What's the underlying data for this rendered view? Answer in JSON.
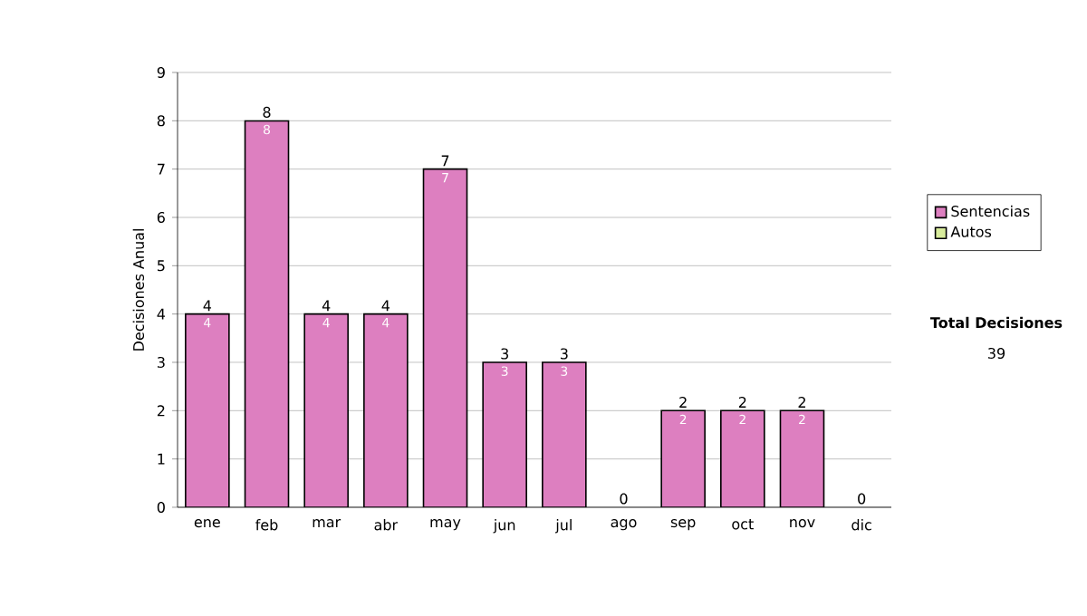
{
  "chart_data": {
    "type": "bar",
    "stacked": true,
    "ylabel": "Decisiones Anual",
    "categories": [
      "ene",
      "feb",
      "mar",
      "abr",
      "may",
      "jun",
      "jul",
      "ago",
      "sep",
      "oct",
      "nov",
      "dic"
    ],
    "series": [
      {
        "name": "Sentencias",
        "color": "#dd7fc0",
        "values": [
          4,
          8,
          4,
          4,
          7,
          3,
          3,
          0,
          2,
          2,
          2,
          0
        ],
        "value_labels": [
          "4",
          "8",
          "4",
          "4",
          "7",
          "3",
          "3",
          null,
          "2",
          "2",
          "2",
          null
        ]
      },
      {
        "name": "Autos",
        "color": "#d8ec9c",
        "values": [
          0,
          0,
          0,
          0,
          0,
          0,
          0,
          0,
          0,
          0,
          0,
          0
        ]
      }
    ],
    "totals": [
      "4",
      "8",
      "4",
      "4",
      "7",
      "3",
      "3",
      "0",
      "2",
      "2",
      "2",
      "0"
    ],
    "ylim": [
      0,
      9
    ],
    "yticks": [
      0,
      1,
      2,
      3,
      4,
      5,
      6,
      7,
      8,
      9
    ],
    "grid": "y",
    "legend": "right",
    "annotations": [
      "Total Decisiones",
      "39"
    ]
  }
}
